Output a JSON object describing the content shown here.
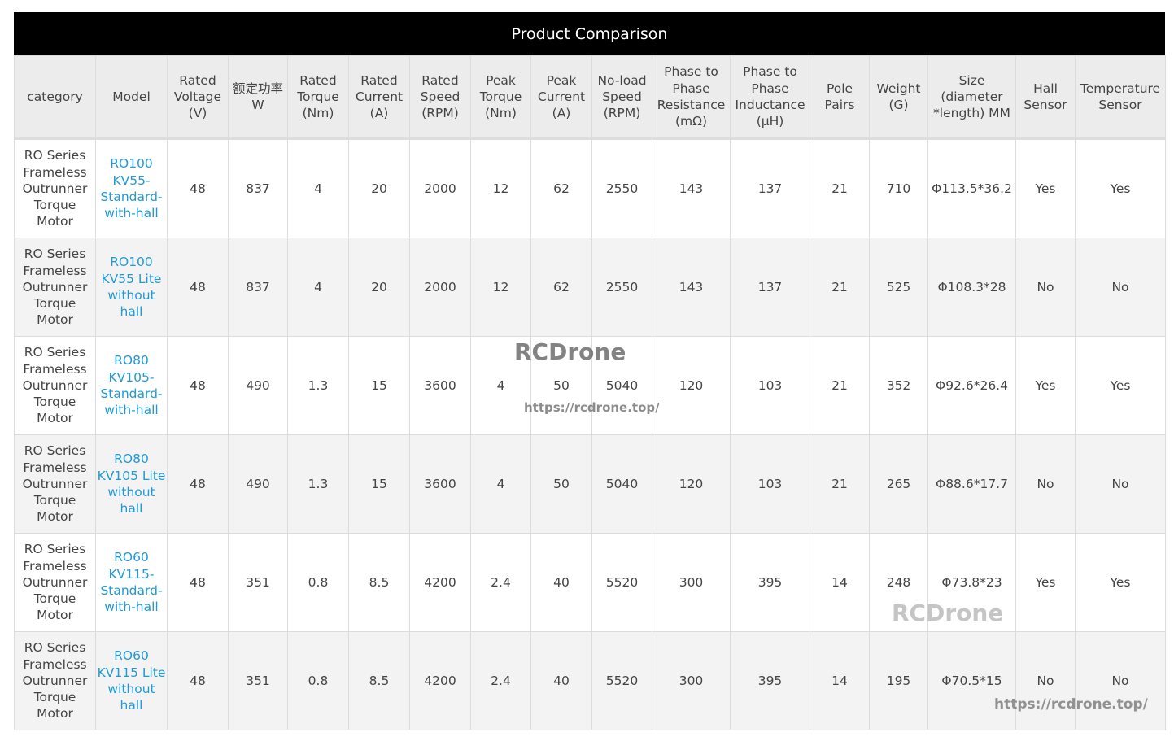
{
  "title": "Product Comparison",
  "headers": [
    "category",
    "Model",
    "Rated Voltage (V)",
    "额定功率W",
    "Rated Torque (Nm)",
    "Rated Current (A)",
    "Rated Speed (RPM)",
    "Peak Torque (Nm)",
    "Peak Current (A)",
    "No-load Speed (RPM)",
    "Phase to Phase Resistance (mΩ)",
    "Phase to Phase Inductance (μH)",
    "Pole Pairs",
    "Weight (G)",
    "Size (diameter *length) MM",
    "Hall Sensor",
    "Temperature Sensor"
  ],
  "rows": [
    [
      "RO Series Frameless Outrunner Torque Motor",
      "RO100 KV55-Standard-with-hall",
      "48",
      "837",
      "4",
      "20",
      "2000",
      "12",
      "62",
      "2550",
      "143",
      "137",
      "21",
      "710",
      "Φ113.5*36.2",
      "Yes",
      "Yes"
    ],
    [
      "RO Series Frameless Outrunner Torque Motor",
      "RO100 KV55 Lite without hall",
      "48",
      "837",
      "4",
      "20",
      "2000",
      "12",
      "62",
      "2550",
      "143",
      "137",
      "21",
      "525",
      "Φ108.3*28",
      "No",
      "No"
    ],
    [
      "RO Series Frameless Outrunner Torque Motor",
      "RO80 KV105-Standard-with-hall",
      "48",
      "490",
      "1.3",
      "15",
      "3600",
      "4",
      "50",
      "5040",
      "120",
      "103",
      "21",
      "352",
      "Φ92.6*26.4",
      "Yes",
      "Yes"
    ],
    [
      "RO Series Frameless Outrunner Torque Motor",
      "RO80 KV105 Lite without hall",
      "48",
      "490",
      "1.3",
      "15",
      "3600",
      "4",
      "50",
      "5040",
      "120",
      "103",
      "21",
      "265",
      "Φ88.6*17.7",
      "No",
      "No"
    ],
    [
      "RO Series Frameless Outrunner Torque Motor",
      "RO60 KV115-Standard-with-hall",
      "48",
      "351",
      "0.8",
      "8.5",
      "4200",
      "2.4",
      "40",
      "5520",
      "300",
      "395",
      "14",
      "248",
      "Φ73.8*23",
      "Yes",
      "Yes"
    ],
    [
      "RO Series Frameless Outrunner Torque Motor",
      "RO60 KV115 Lite without hall",
      "48",
      "351",
      "0.8",
      "8.5",
      "4200",
      "2.4",
      "40",
      "5520",
      "300",
      "395",
      "14",
      "195",
      "Φ70.5*15",
      "No",
      "No"
    ]
  ],
  "watermarks": [
    "RCDrone",
    "https://rcdrone.top/",
    "RCDrone",
    "https://rcdrone.top/"
  ],
  "colors": {
    "title_bg": "#000000",
    "header_bg": "#ececec",
    "model_link": "#1f9ad6",
    "row_alt": "#f3f3f3"
  }
}
